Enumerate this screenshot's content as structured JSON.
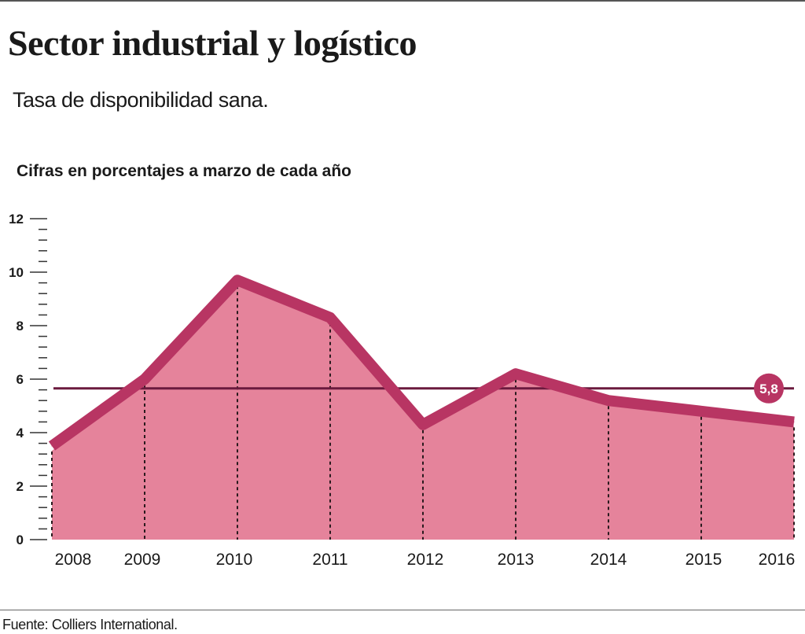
{
  "header": {
    "title": "Sector industrial y logístico",
    "subtitle": "Tasa de disponibilidad sana.",
    "units_note": "Cifras en porcentajes a marzo de cada año"
  },
  "footer": {
    "source": "Fuente: Colliers International."
  },
  "colors": {
    "line": "#b83563",
    "fill": "#e5839b",
    "reference_line": "#6b1a3e",
    "reference_badge": "#b83563",
    "axis": "#333333",
    "dotted_guides": "#2a1a1e"
  },
  "chart_data": {
    "type": "area",
    "title": "Sector industrial y logístico",
    "subtitle": "Tasa de disponibilidad sana.",
    "xlabel": "",
    "ylabel": "Cifras en porcentajes a marzo de cada año",
    "categories": [
      "2008",
      "2009",
      "2010",
      "2011",
      "2012",
      "2013",
      "2014",
      "2015",
      "2016"
    ],
    "series": [
      {
        "name": "Tasa de disponibilidad",
        "values": [
          3.5,
          6.0,
          9.7,
          8.3,
          4.3,
          6.2,
          5.2,
          4.8,
          4.4
        ]
      }
    ],
    "ylim": [
      0,
      12
    ],
    "yticks": [
      0,
      2,
      4,
      6,
      8,
      10,
      12
    ],
    "yticks_minor_step": 0.4,
    "grid": false,
    "reference_line": {
      "value": 5.8,
      "label": "5,8"
    },
    "legend": "none"
  }
}
